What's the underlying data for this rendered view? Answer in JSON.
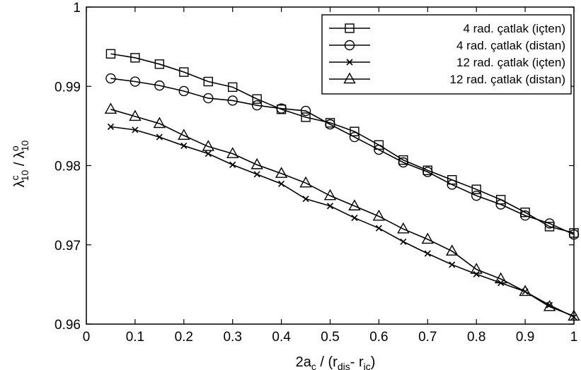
{
  "chart_data": {
    "type": "line",
    "x": [
      0.05,
      0.1,
      0.15,
      0.2,
      0.25,
      0.3,
      0.35,
      0.4,
      0.45,
      0.5,
      0.55,
      0.6,
      0.65,
      0.7,
      0.75,
      0.8,
      0.85,
      0.9,
      0.95,
      1.0
    ],
    "series": [
      {
        "name": "4 rad. çatlak (içten)",
        "marker": "square",
        "values": [
          0.9941,
          0.9936,
          0.9928,
          0.9918,
          0.9906,
          0.9899,
          0.9884,
          0.9871,
          0.9861,
          0.9854,
          0.9843,
          0.9826,
          0.9807,
          0.9794,
          0.9782,
          0.977,
          0.9757,
          0.9741,
          0.9723,
          0.9715
        ]
      },
      {
        "name": "4 rad. çatlak (distan)",
        "marker": "circle",
        "values": [
          0.991,
          0.9906,
          0.9901,
          0.9894,
          0.9885,
          0.9882,
          0.9876,
          0.9872,
          0.9869,
          0.9852,
          0.9836,
          0.982,
          0.9804,
          0.9792,
          0.9776,
          0.9762,
          0.9751,
          0.9737,
          0.9727,
          0.9713
        ]
      },
      {
        "name": "12 rad. çatlak (içten)",
        "marker": "x",
        "values": [
          0.9849,
          0.9845,
          0.9836,
          0.9825,
          0.9815,
          0.9801,
          0.9789,
          0.9777,
          0.9758,
          0.9749,
          0.9734,
          0.9721,
          0.9704,
          0.9689,
          0.9675,
          0.9663,
          0.9652,
          0.9641,
          0.9624,
          0.9609
        ]
      },
      {
        "name": "12 rad. çatlak (distan)",
        "marker": "triangle",
        "values": [
          0.9871,
          0.9862,
          0.9853,
          0.9838,
          0.9824,
          0.9815,
          0.9801,
          0.979,
          0.9778,
          0.9762,
          0.9749,
          0.9736,
          0.972,
          0.9707,
          0.9692,
          0.9669,
          0.9657,
          0.9641,
          0.9622,
          0.961
        ]
      }
    ],
    "xlim": [
      0,
      1
    ],
    "ylim": [
      0.96,
      1
    ],
    "xticks": [
      "0",
      "0.1",
      "0.2",
      "0.3",
      "0.4",
      "0.5",
      "0.6",
      "0.7",
      "0.8",
      "0.9",
      "1"
    ],
    "yticks": [
      "0.96",
      "0.97",
      "0.98",
      "0.99",
      "1"
    ],
    "xlabel": {
      "main": "2a",
      "sub_c": "c",
      "mid": " / (r",
      "sub_dis": "dis",
      "dash": "- r",
      "sub_ic": "iç",
      "end": ")"
    },
    "ylabel": {
      "sym1": "λ",
      "sup1": "c",
      "sub1": "10",
      "slash": " / ",
      "sym2": "λ",
      "sup2": "o",
      "sub2": "10"
    },
    "legend_position": "top-right",
    "grid": false,
    "line_color": "#000000"
  }
}
